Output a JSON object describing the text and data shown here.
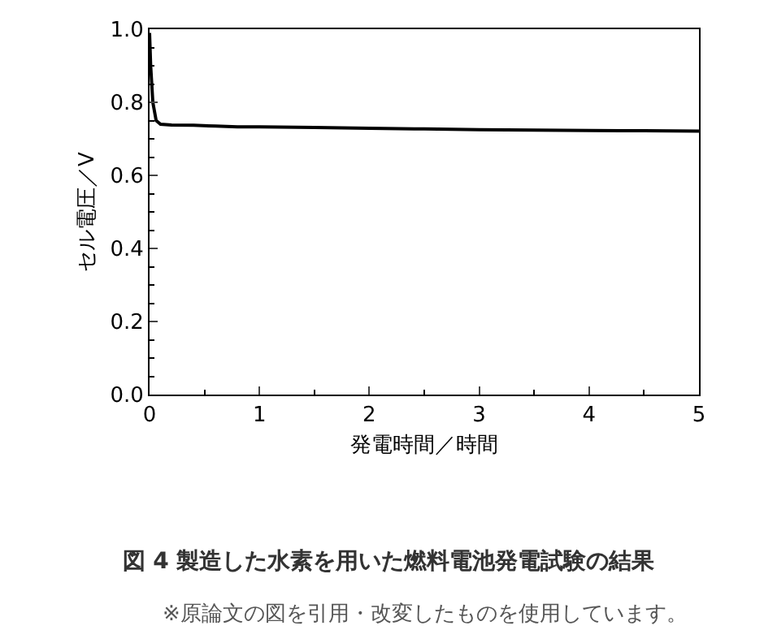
{
  "chart_data": {
    "type": "line",
    "title": "図 4 製造した水素を用いた燃料電池発電試験の結果",
    "xlabel": "発電時間／時間",
    "ylabel": "セル電圧／V",
    "annotations": [
      "※原論文の図を引用・改変したものを使用しています。"
    ],
    "x": [
      0.0,
      0.01,
      0.03,
      0.06,
      0.1,
      0.2,
      0.4,
      0.6,
      0.8,
      1.0,
      1.5,
      2.0,
      2.5,
      3.0,
      3.5,
      4.0,
      4.5,
      5.0
    ],
    "series": [
      {
        "color": "#000000",
        "values": [
          0.99,
          0.9,
          0.8,
          0.75,
          0.74,
          0.738,
          0.737,
          0.735,
          0.733,
          0.733,
          0.731,
          0.729,
          0.727,
          0.725,
          0.724,
          0.723,
          0.722,
          0.721
        ]
      }
    ],
    "xlim": [
      0,
      5
    ],
    "xticks": [
      0,
      1,
      2,
      3,
      4,
      5
    ],
    "ylim": [
      0,
      1
    ],
    "yticks": [
      {
        "value": 0,
        "label": "0.0"
      },
      {
        "value": 0.2,
        "label": "0.2"
      },
      {
        "value": 0.4,
        "label": "0.4"
      },
      {
        "value": 0.6,
        "label": "0.6"
      },
      {
        "value": 0.8,
        "label": "0.8"
      },
      {
        "value": 1,
        "label": "1.0"
      }
    ],
    "legend": false,
    "marker": "none",
    "line_style": "solid"
  }
}
